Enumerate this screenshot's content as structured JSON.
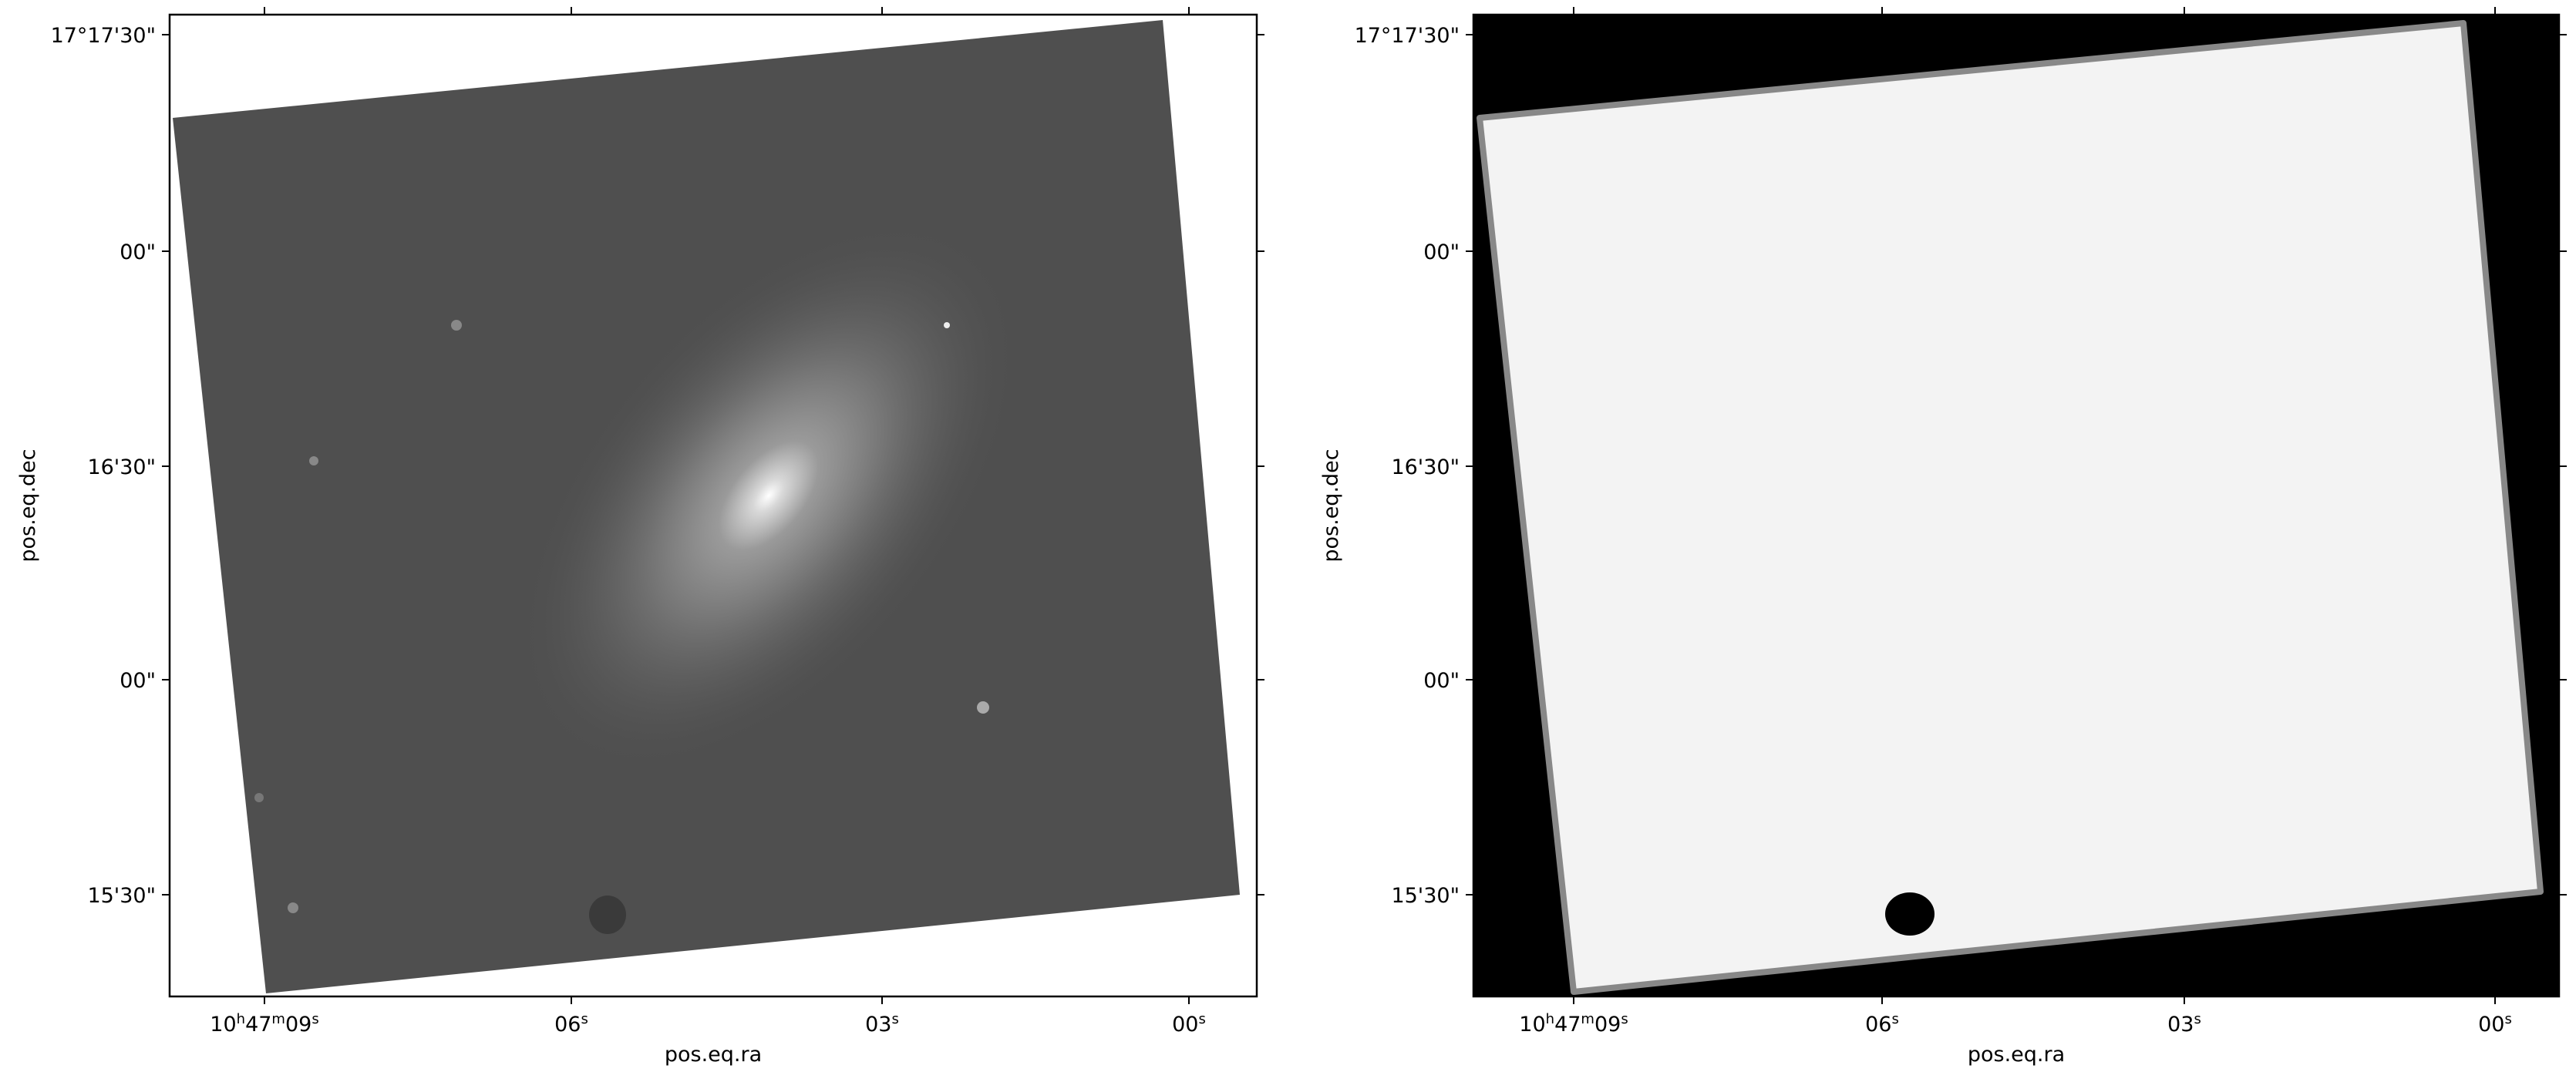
{
  "chart_data": [
    {
      "type": "image",
      "xlabel": "pos.eq.ra",
      "ylabel": "pos.eq.dec",
      "x_ticks": [
        "10h47m09s",
        "06s",
        "03s",
        "00s"
      ],
      "y_ticks": [
        "17°17'30\"",
        "00\"",
        "16'30\"",
        "00\"",
        "15'30\""
      ],
      "colormap": "gray",
      "background": "#ffffff",
      "content": "spiral galaxy"
    },
    {
      "type": "image",
      "xlabel": "pos.eq.ra",
      "ylabel": "pos.eq.dec",
      "x_ticks": [
        "10h47m09s",
        "06s",
        "03s",
        "00s"
      ],
      "y_ticks": [
        "17°17'30\"",
        "00\"",
        "16'30\"",
        "00\"",
        "15'30\""
      ],
      "colormap": "gray",
      "background": "#000000",
      "content": "weight map"
    }
  ]
}
